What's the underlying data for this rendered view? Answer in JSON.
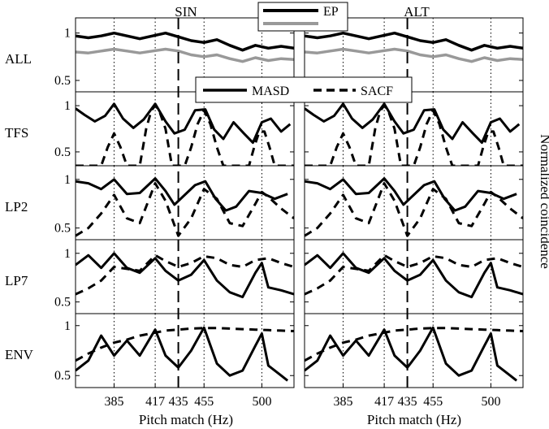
{
  "figure": {
    "ylabel": "Normalized coincidence",
    "xlabel": "Pitch match (Hz)",
    "columns": [
      {
        "label": "SIN",
        "xlabel": "Pitch match (Hz)"
      },
      {
        "label": "ALT",
        "xlabel": "Pitch match (Hz)"
      }
    ],
    "rows": [
      {
        "label": "ALL"
      },
      {
        "label": "TFS"
      },
      {
        "label": "LP2"
      },
      {
        "label": "LP7"
      },
      {
        "label": "ENV"
      }
    ],
    "legend_top": [
      {
        "label": "EP",
        "color": "#000000"
      },
      {
        "label": "",
        "color": "#999999"
      }
    ],
    "legend_mid": [
      {
        "label": "MASD",
        "style": "solid"
      },
      {
        "label": "SACF",
        "style": "dashed"
      }
    ]
  },
  "chart_data": {
    "type": "line",
    "xlim": [
      355,
      525
    ],
    "xticks": [
      385,
      417,
      435,
      455,
      500
    ],
    "dotted_reference_lines": [
      385,
      417,
      455,
      500
    ],
    "dashed_reference_line": 435,
    "panels": [
      {
        "row": "ALL",
        "ylim": [
          0.38,
          1.16
        ],
        "yticks": [
          0.5,
          1
        ],
        "series": [
          {
            "name": "EP",
            "color": "#000000",
            "style": "solid",
            "x": [
              355,
              365,
              375,
              385,
              395,
              405,
              415,
              425,
              435,
              445,
              455,
              465,
              475,
              485,
              495,
              505,
              515,
              525
            ],
            "y": [
              0.97,
              0.95,
              0.97,
              1.0,
              0.97,
              0.94,
              0.97,
              1.0,
              0.96,
              0.92,
              0.9,
              0.93,
              0.87,
              0.82,
              0.87,
              0.84,
              0.86,
              0.84
            ]
          },
          {
            "name": "",
            "color": "#999999",
            "style": "solid",
            "x": [
              355,
              365,
              375,
              385,
              395,
              405,
              415,
              425,
              435,
              445,
              455,
              465,
              475,
              485,
              495,
              505,
              515,
              525
            ],
            "y": [
              0.8,
              0.79,
              0.81,
              0.83,
              0.81,
              0.79,
              0.81,
              0.83,
              0.81,
              0.77,
              0.75,
              0.77,
              0.73,
              0.7,
              0.74,
              0.71,
              0.73,
              0.72
            ]
          }
        ]
      },
      {
        "row": "TFS",
        "ylim": [
          0.35,
          1.15
        ],
        "yticks": [
          0.5,
          1
        ],
        "series": [
          {
            "name": "MASD",
            "style": "solid",
            "x": [
              355,
              362,
              370,
              378,
              385,
              392,
              400,
              408,
              417,
              425,
              432,
              440,
              448,
              456,
              463,
              470,
              478,
              486,
              493,
              500,
              507,
              515,
              522
            ],
            "y": [
              0.97,
              0.9,
              0.83,
              0.89,
              1.02,
              0.86,
              0.76,
              0.85,
              1.02,
              0.83,
              0.7,
              0.74,
              0.95,
              0.96,
              0.74,
              0.64,
              0.82,
              0.7,
              0.6,
              0.82,
              0.86,
              0.72,
              0.8
            ]
          },
          {
            "name": "SACF",
            "style": "dashed",
            "x": [
              355,
              370,
              375,
              380,
              385,
              390,
              395,
              400,
              405,
              410,
              414,
              417,
              420,
              425,
              430,
              440,
              445,
              450,
              455,
              460,
              465,
              470,
              480,
              490,
              494,
              498,
              502,
              506,
              510,
              525
            ],
            "y": [
              0.35,
              0.35,
              0.35,
              0.55,
              0.7,
              0.55,
              0.35,
              0.35,
              0.35,
              0.75,
              0.95,
              1.0,
              0.95,
              0.75,
              0.35,
              0.35,
              0.55,
              0.8,
              0.95,
              0.8,
              0.55,
              0.35,
              0.35,
              0.35,
              0.55,
              0.72,
              0.72,
              0.55,
              0.35,
              0.35
            ]
          }
        ]
      },
      {
        "row": "LP2",
        "ylim": [
          0.38,
          1.14
        ],
        "yticks": [
          0.5,
          1
        ],
        "series": [
          {
            "name": "MASD",
            "style": "solid",
            "x": [
              355,
              365,
              375,
              385,
              395,
              405,
              417,
              425,
              432,
              440,
              448,
              456,
              464,
              472,
              480,
              490,
              500,
              510,
              520
            ],
            "y": [
              0.98,
              0.96,
              0.9,
              1.0,
              0.85,
              0.86,
              1.01,
              0.88,
              0.74,
              0.84,
              0.94,
              0.98,
              0.8,
              0.68,
              0.72,
              0.88,
              0.86,
              0.8,
              0.85
            ]
          },
          {
            "name": "SACF",
            "style": "dashed",
            "x": [
              355,
              365,
              375,
              385,
              395,
              405,
              417,
              425,
              435,
              445,
              455,
              465,
              475,
              485,
              495,
              500,
              505,
              515,
              525
            ],
            "y": [
              0.42,
              0.5,
              0.65,
              0.84,
              0.6,
              0.55,
              0.96,
              0.78,
              0.42,
              0.6,
              0.9,
              0.8,
              0.55,
              0.52,
              0.75,
              0.87,
              0.82,
              0.7,
              0.6
            ]
          }
        ]
      },
      {
        "row": "LP7",
        "ylim": [
          0.38,
          1.14
        ],
        "yticks": [
          0.5,
          1
        ],
        "series": [
          {
            "name": "MASD",
            "style": "solid",
            "x": [
              355,
              365,
              375,
              385,
              395,
              405,
              417,
              425,
              435,
              445,
              455,
              465,
              475,
              485,
              495,
              500,
              505,
              515,
              525
            ],
            "y": [
              0.88,
              0.98,
              0.85,
              1.0,
              0.85,
              0.8,
              0.95,
              0.82,
              0.72,
              0.78,
              0.93,
              0.72,
              0.6,
              0.55,
              0.8,
              0.9,
              0.65,
              0.62,
              0.58
            ]
          },
          {
            "name": "SACF",
            "style": "dashed",
            "x": [
              355,
              365,
              375,
              385,
              395,
              405,
              417,
              425,
              435,
              445,
              455,
              465,
              475,
              485,
              495,
              505,
              515,
              525
            ],
            "y": [
              0.58,
              0.64,
              0.72,
              0.86,
              0.84,
              0.82,
              0.98,
              0.92,
              0.86,
              0.9,
              0.97,
              0.95,
              0.88,
              0.86,
              0.93,
              0.95,
              0.9,
              0.86
            ]
          }
        ]
      },
      {
        "row": "ENV",
        "ylim": [
          0.38,
          1.12
        ],
        "yticks": [
          0.5,
          1
        ],
        "series": [
          {
            "name": "MASD",
            "style": "solid",
            "x": [
              355,
              360,
              365,
              375,
              385,
              395,
              405,
              417,
              425,
              435,
              445,
              455,
              465,
              475,
              485,
              495,
              500,
              505,
              515,
              520
            ],
            "y": [
              0.55,
              0.6,
              0.65,
              0.9,
              0.7,
              0.85,
              0.7,
              0.96,
              0.7,
              0.58,
              0.75,
              0.98,
              0.62,
              0.5,
              0.55,
              0.8,
              0.92,
              0.6,
              0.5,
              0.45
            ]
          },
          {
            "name": "SACF",
            "style": "dashed",
            "x": [
              355,
              365,
              375,
              385,
              395,
              405,
              417,
              425,
              435,
              445,
              455,
              465,
              475,
              485,
              495,
              505,
              515,
              525
            ],
            "y": [
              0.65,
              0.72,
              0.78,
              0.83,
              0.86,
              0.9,
              0.93,
              0.95,
              0.96,
              0.97,
              0.975,
              0.975,
              0.97,
              0.965,
              0.96,
              0.955,
              0.95,
              0.945
            ]
          }
        ]
      }
    ]
  }
}
